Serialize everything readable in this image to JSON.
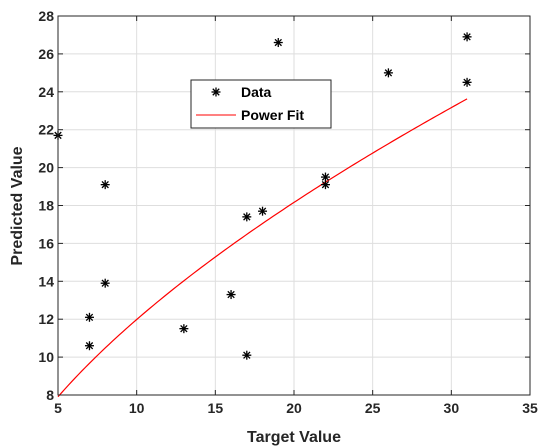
{
  "chart_data": {
    "type": "scatter",
    "xlabel": "Target Value",
    "ylabel": "Predicted Value",
    "xlim": [
      5,
      35
    ],
    "ylim": [
      8,
      28
    ],
    "xticks": [
      5,
      10,
      15,
      20,
      25,
      30,
      35
    ],
    "yticks": [
      8,
      10,
      12,
      14,
      16,
      18,
      20,
      22,
      24,
      26,
      28
    ],
    "grid": true,
    "legend_position": "top-center",
    "series": [
      {
        "name": "Data",
        "kind": "scatter",
        "marker": "asterisk",
        "color": "#000000",
        "points": [
          {
            "x": 5,
            "y": 21.7
          },
          {
            "x": 7,
            "y": 12.1
          },
          {
            "x": 7,
            "y": 10.6
          },
          {
            "x": 8,
            "y": 19.1
          },
          {
            "x": 8,
            "y": 13.9
          },
          {
            "x": 13,
            "y": 11.5
          },
          {
            "x": 16,
            "y": 13.3
          },
          {
            "x": 17,
            "y": 17.4
          },
          {
            "x": 17,
            "y": 10.1
          },
          {
            "x": 18,
            "y": 17.7
          },
          {
            "x": 19,
            "y": 26.6
          },
          {
            "x": 22,
            "y": 19.5
          },
          {
            "x": 22,
            "y": 19.1
          },
          {
            "x": 26,
            "y": 25.0
          },
          {
            "x": 31,
            "y": 26.9
          },
          {
            "x": 31,
            "y": 24.5
          }
        ]
      },
      {
        "name": "Power Fit",
        "kind": "line",
        "color": "#ff0000",
        "x_range": [
          5,
          31
        ],
        "fit": {
          "a": 3.01,
          "b": 0.6
        }
      }
    ]
  }
}
